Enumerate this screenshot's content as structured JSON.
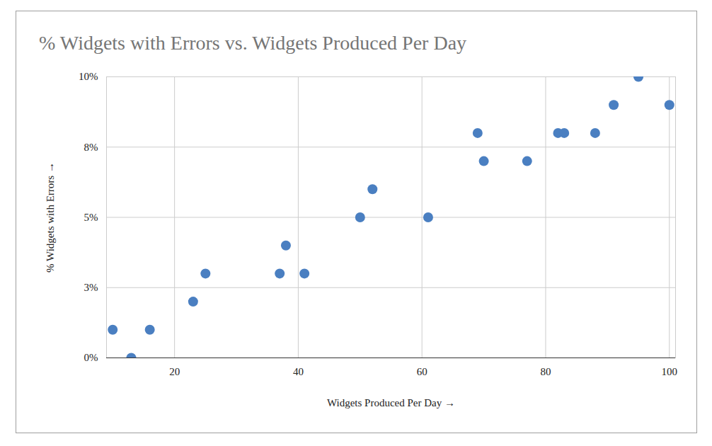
{
  "chart_data": {
    "type": "scatter",
    "title": "% Widgets with Errors vs. Widgets Produced Per Day",
    "x_label": "Widgets Produced Per Day",
    "y_label": "% Widgets with Errors",
    "x": [
      10,
      13,
      16,
      23,
      25,
      37,
      38,
      41,
      50,
      52,
      61,
      69,
      70,
      77,
      82,
      83,
      88,
      91,
      95,
      100
    ],
    "values": [
      1,
      0,
      1,
      2,
      3,
      3,
      4,
      3,
      5,
      6,
      5,
      8,
      7,
      7,
      8,
      8,
      8,
      9,
      10,
      9
    ],
    "color": "#4a7fc1",
    "marker": "circle",
    "xlim": [
      9,
      101
    ],
    "xticks": [
      20,
      40,
      60,
      80,
      100
    ],
    "ylim": [
      0,
      10
    ],
    "yticks": [
      {
        "value": 0,
        "label": "0%"
      },
      {
        "value": 2.5,
        "label": "3%"
      },
      {
        "value": 5,
        "label": "5%"
      },
      {
        "value": 7.5,
        "label": "8%"
      },
      {
        "value": 10,
        "label": "10%"
      }
    ],
    "grid": true
  }
}
